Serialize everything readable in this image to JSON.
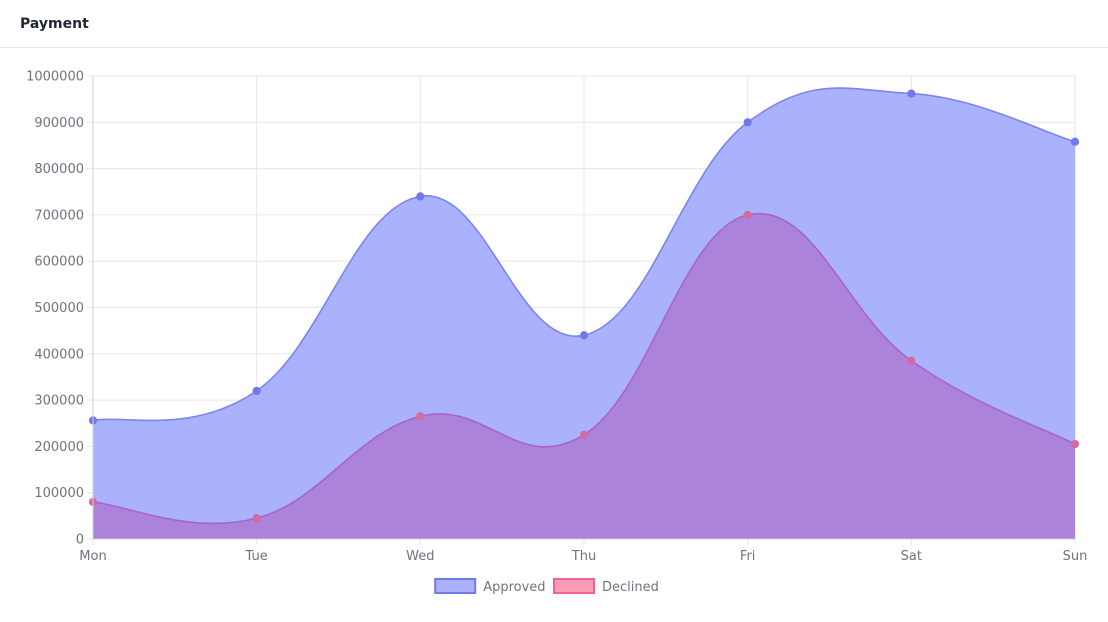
{
  "card": {
    "title": "Payment"
  },
  "chart_data": {
    "type": "area",
    "categories": [
      "Mon",
      "Tue",
      "Wed",
      "Thu",
      "Fri",
      "Sat",
      "Sun"
    ],
    "series": [
      {
        "name": "Approved",
        "values": [
          256000,
          320000,
          740000,
          440000,
          900000,
          962000,
          858000
        ],
        "fill": "#aab1fd",
        "stroke": "#7c84ee",
        "point": "#7078ea",
        "legend_fill": "#aab1fd",
        "legend_stroke": "#7078ea"
      },
      {
        "name": "Declined",
        "values": [
          80000,
          45000,
          265000,
          225000,
          700000,
          385000,
          205000
        ],
        "fill": "#ad7fd8",
        "stroke": "#a765c9",
        "point": "#d46aa0",
        "legend_fill": "#ff9cb5",
        "legend_stroke": "#ef6590"
      }
    ],
    "yticks": [
      1000000,
      900000,
      800000,
      700000,
      600000,
      500000,
      400000,
      300000,
      200000,
      100000,
      0
    ],
    "ylim": [
      0,
      1000000
    ],
    "grid": true,
    "legend": "bottom-center"
  }
}
